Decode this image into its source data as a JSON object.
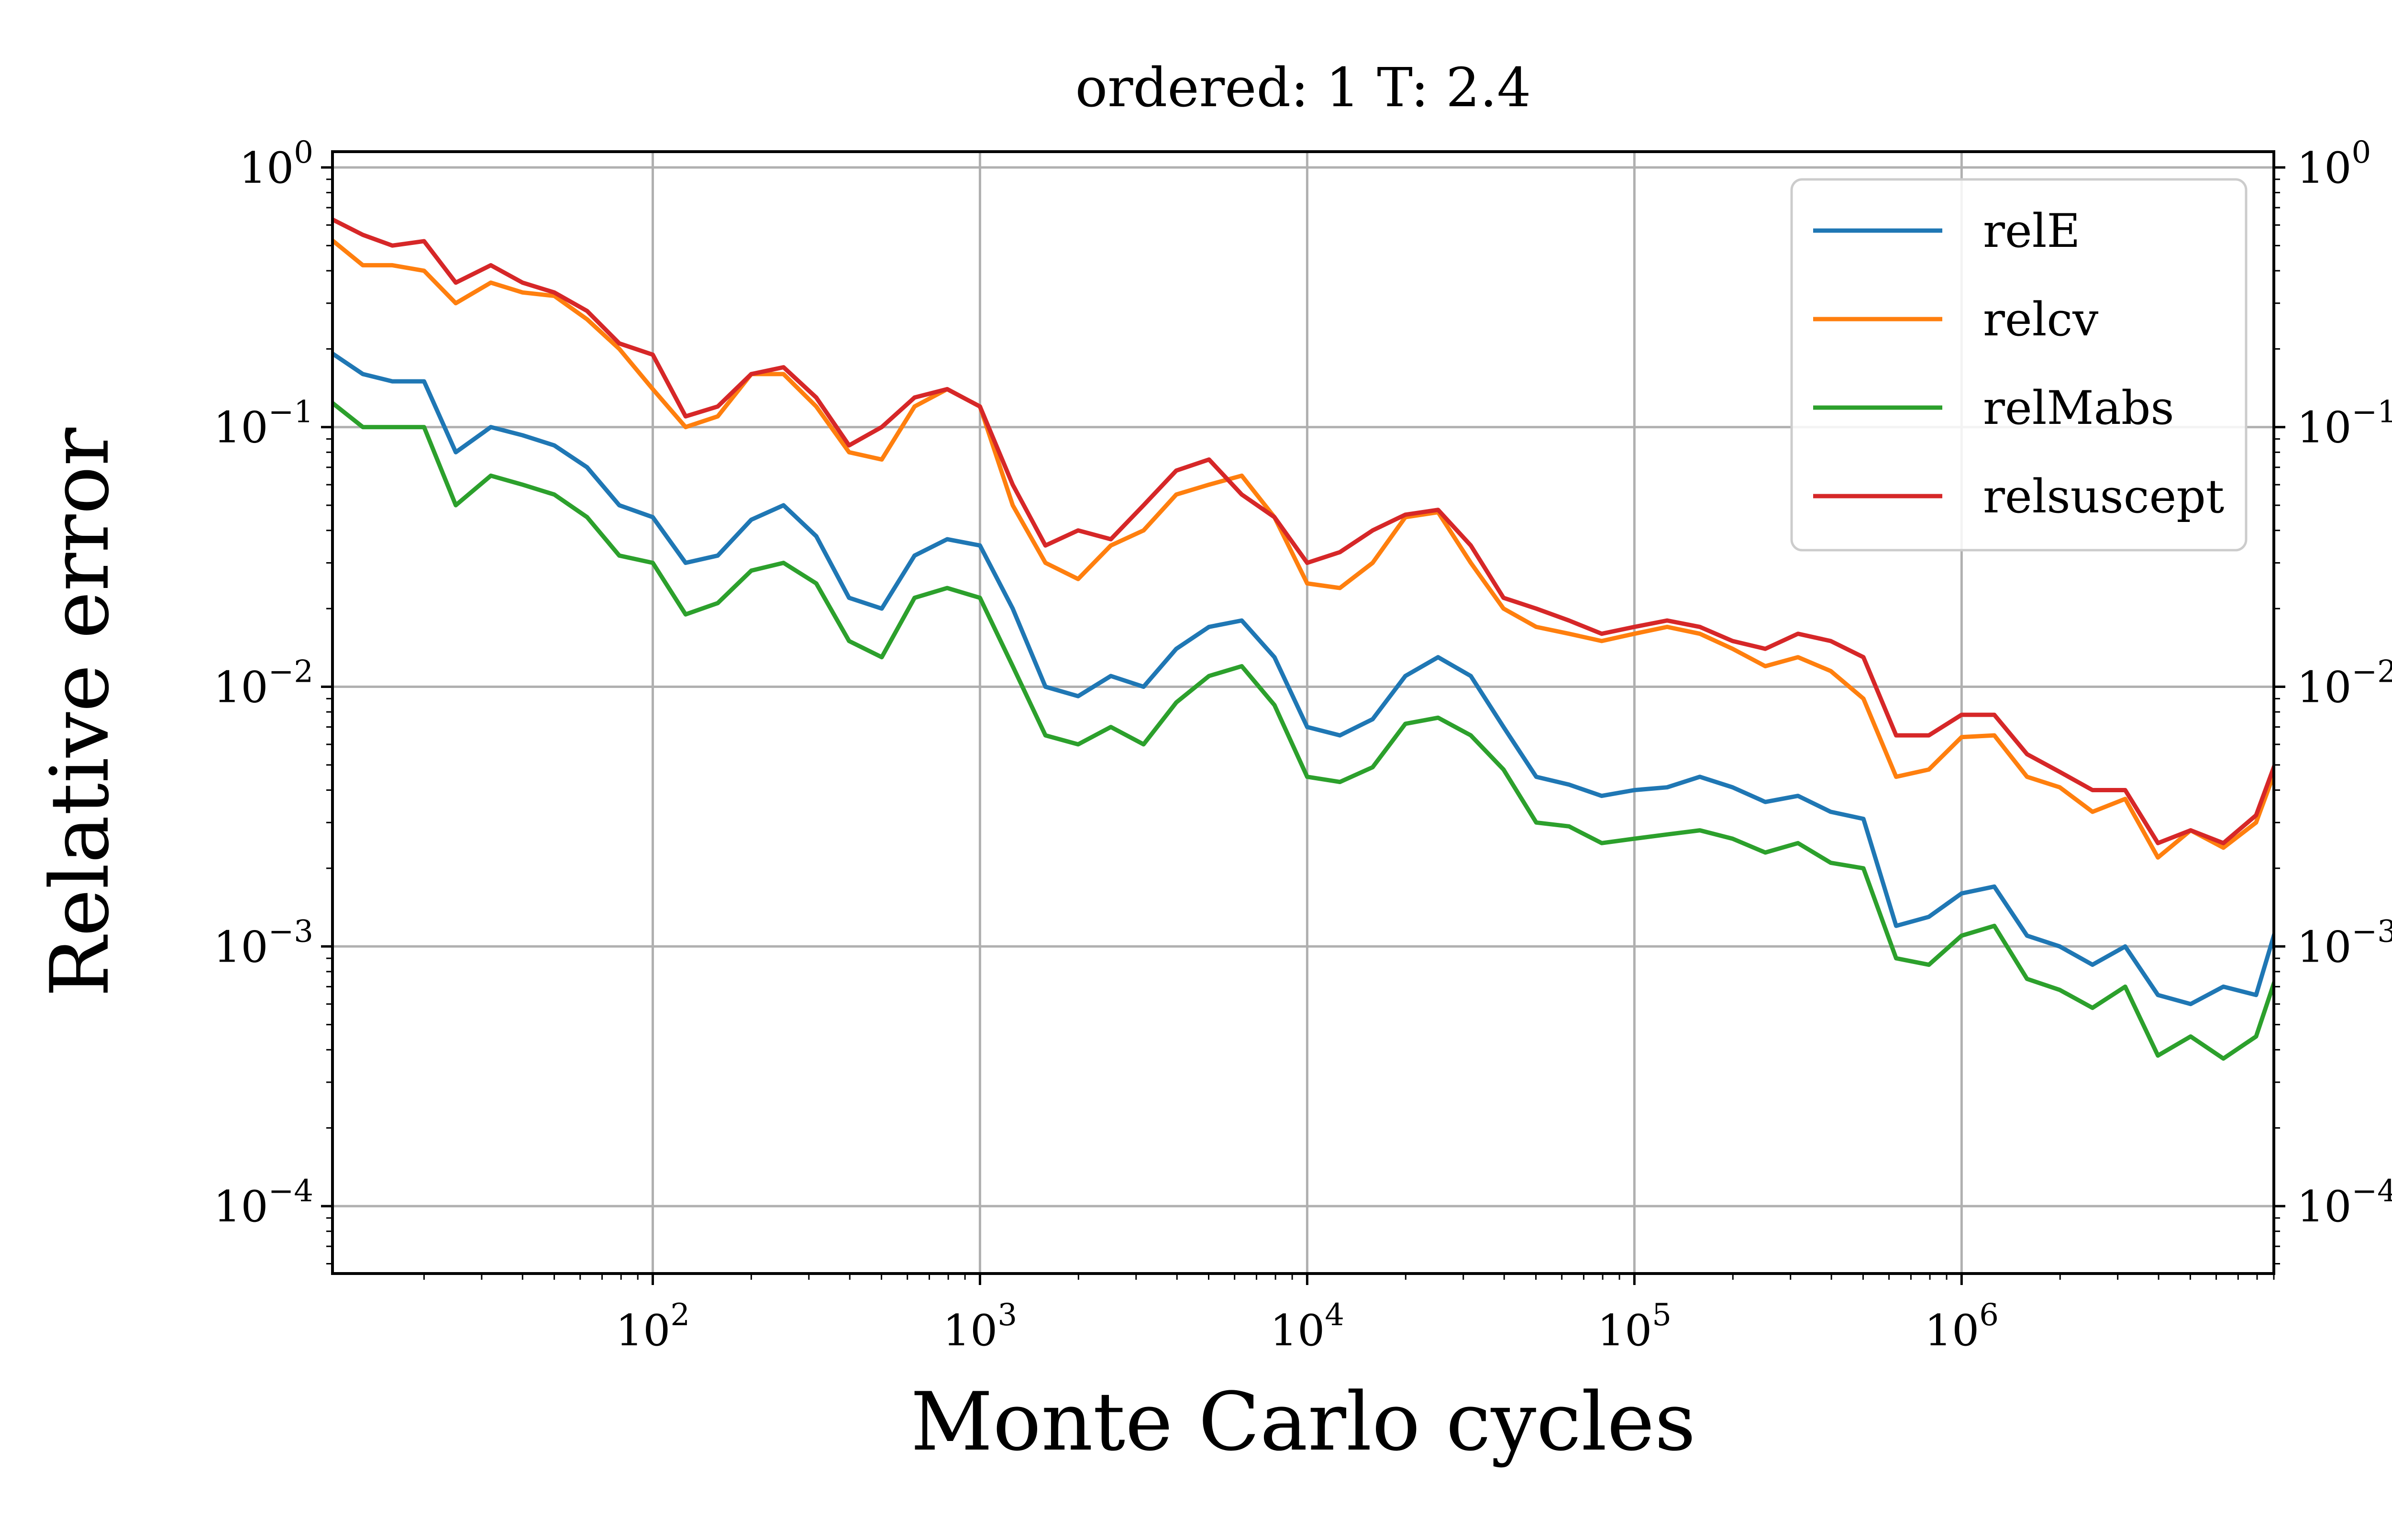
{
  "chart_data": {
    "type": "line",
    "title": "ordered: 1 T: 2.4",
    "xlabel": "Monte Carlo cycles",
    "ylabel": "Relative error",
    "xscale": "log",
    "yscale": "log",
    "xlim": [
      10.5,
      9000000
    ],
    "ylim": [
      5.5e-05,
      1.15
    ],
    "xticks": [
      {
        "value": 100,
        "base": "10",
        "exp": "2"
      },
      {
        "value": 1000,
        "base": "10",
        "exp": "3"
      },
      {
        "value": 10000,
        "base": "10",
        "exp": "4"
      },
      {
        "value": 100000,
        "base": "10",
        "exp": "5"
      },
      {
        "value": 1000000,
        "base": "10",
        "exp": "6"
      }
    ],
    "yticks": [
      {
        "value": 1,
        "base": "10",
        "exp": "0"
      },
      {
        "value": 0.1,
        "base": "10",
        "exp": "−1"
      },
      {
        "value": 0.01,
        "base": "10",
        "exp": "−2"
      },
      {
        "value": 0.001,
        "base": "10",
        "exp": "−3"
      },
      {
        "value": 0.0001,
        "base": "10",
        "exp": "−4"
      }
    ],
    "grid": true,
    "secondary_y_axis": "mirrored tick labels on right",
    "legend_position": "top-right",
    "x": [
      10,
      13,
      16,
      20,
      25,
      32,
      40,
      50,
      63,
      79,
      100,
      126,
      158,
      200,
      251,
      316,
      398,
      501,
      631,
      794,
      1000,
      1259,
      1585,
      1995,
      2512,
      3162,
      3981,
      5012,
      6310,
      7943,
      10000,
      12589,
      15849,
      19953,
      25119,
      31623,
      39811,
      50119,
      63096,
      79433,
      100000,
      125893,
      158489,
      199526,
      251189,
      316228,
      398107,
      501187,
      630957,
      794328,
      1000000,
      1258925,
      1584893,
      1995262,
      2511886,
      3162278,
      3981072,
      5011872,
      6309573,
      7943282,
      9000000
    ],
    "series": [
      {
        "name": "relE",
        "color": "#1f77b4",
        "values": [
          0.2,
          0.16,
          0.15,
          0.15,
          0.08,
          0.1,
          0.093,
          0.085,
          0.07,
          0.05,
          0.045,
          0.03,
          0.032,
          0.044,
          0.05,
          0.038,
          0.022,
          0.02,
          0.032,
          0.037,
          0.035,
          0.02,
          0.01,
          0.0092,
          0.011,
          0.01,
          0.014,
          0.017,
          0.018,
          0.013,
          0.007,
          0.0065,
          0.0075,
          0.011,
          0.013,
          0.011,
          0.007,
          0.0045,
          0.0042,
          0.0038,
          0.004,
          0.0041,
          0.0045,
          0.0041,
          0.0036,
          0.0038,
          0.0033,
          0.0031,
          0.0012,
          0.0013,
          0.0016,
          0.0017,
          0.0011,
          0.001,
          0.00085,
          0.001,
          0.00065,
          0.0006,
          0.0007,
          0.00065,
          0.0011
        ]
      },
      {
        "name": "relcv",
        "color": "#ff7f0e",
        "values": [
          0.55,
          0.42,
          0.42,
          0.4,
          0.3,
          0.36,
          0.33,
          0.32,
          0.26,
          0.2,
          0.14,
          0.1,
          0.11,
          0.16,
          0.16,
          0.12,
          0.08,
          0.075,
          0.12,
          0.14,
          0.12,
          0.05,
          0.03,
          0.026,
          0.035,
          0.04,
          0.055,
          0.06,
          0.065,
          0.045,
          0.025,
          0.024,
          0.03,
          0.045,
          0.047,
          0.03,
          0.02,
          0.017,
          0.016,
          0.015,
          0.016,
          0.017,
          0.016,
          0.014,
          0.012,
          0.013,
          0.0115,
          0.009,
          0.0045,
          0.0048,
          0.0064,
          0.0065,
          0.0045,
          0.0041,
          0.0033,
          0.0037,
          0.0022,
          0.0028,
          0.0024,
          0.003,
          0.0046
        ]
      },
      {
        "name": "relMabs",
        "color": "#2ca02c",
        "values": [
          0.13,
          0.1,
          0.1,
          0.1,
          0.05,
          0.065,
          0.06,
          0.055,
          0.045,
          0.032,
          0.03,
          0.019,
          0.021,
          0.028,
          0.03,
          0.025,
          0.015,
          0.013,
          0.022,
          0.024,
          0.022,
          0.012,
          0.0065,
          0.006,
          0.007,
          0.006,
          0.0087,
          0.011,
          0.012,
          0.0085,
          0.0045,
          0.0043,
          0.0049,
          0.0072,
          0.0076,
          0.0065,
          0.0048,
          0.003,
          0.0029,
          0.0025,
          0.0026,
          0.0027,
          0.0028,
          0.0026,
          0.0023,
          0.0025,
          0.0021,
          0.002,
          0.0009,
          0.00085,
          0.0011,
          0.0012,
          0.00075,
          0.00068,
          0.00058,
          0.0007,
          0.00038,
          0.00045,
          0.00037,
          0.00045,
          0.00072
        ]
      },
      {
        "name": "relsuscept",
        "color": "#d62728",
        "values": [
          0.65,
          0.55,
          0.5,
          0.52,
          0.36,
          0.42,
          0.36,
          0.33,
          0.28,
          0.21,
          0.19,
          0.11,
          0.12,
          0.16,
          0.17,
          0.13,
          0.085,
          0.1,
          0.13,
          0.14,
          0.12,
          0.06,
          0.035,
          0.04,
          0.037,
          0.05,
          0.068,
          0.075,
          0.055,
          0.045,
          0.03,
          0.033,
          0.04,
          0.046,
          0.048,
          0.035,
          0.022,
          0.02,
          0.018,
          0.016,
          0.017,
          0.018,
          0.017,
          0.015,
          0.014,
          0.016,
          0.015,
          0.013,
          0.0065,
          0.0065,
          0.0078,
          0.0078,
          0.0055,
          0.0047,
          0.004,
          0.004,
          0.0025,
          0.0028,
          0.0025,
          0.0032,
          0.0049
        ]
      }
    ]
  }
}
